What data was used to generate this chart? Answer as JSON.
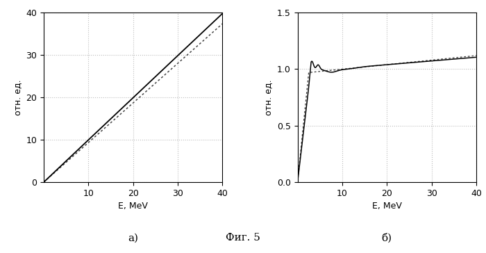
{
  "fig_caption": "Фиг. 5",
  "subplot_a_label": "а)",
  "subplot_b_label": "б)",
  "ylabel": "отн. ед.",
  "xlabel": "E, MeV",
  "plot_a": {
    "xlim": [
      0,
      40
    ],
    "ylim": [
      0,
      40
    ],
    "xticks": [
      10,
      20,
      30,
      40
    ],
    "yticks": [
      0,
      10,
      20,
      30,
      40
    ],
    "line_color": "#000000",
    "dot_color": "#444444"
  },
  "plot_b": {
    "xlim": [
      0,
      40
    ],
    "ylim": [
      0,
      1.5
    ],
    "xticks": [
      10,
      20,
      30,
      40
    ],
    "yticks": [
      0,
      0.5,
      1.0,
      1.5
    ],
    "line_color": "#000000",
    "dot_color": "#444444"
  },
  "background_color": "#ffffff",
  "grid_color": "#bbbbbb",
  "font_color": "#000000"
}
